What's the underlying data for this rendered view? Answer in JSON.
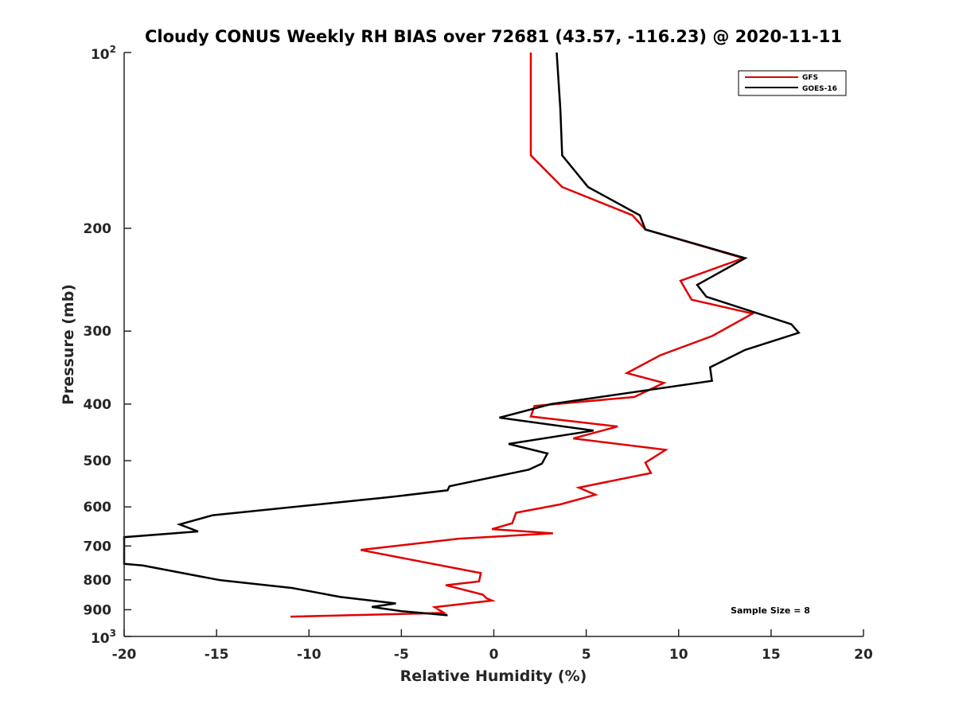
{
  "chart_data": {
    "type": "line",
    "title": "Cloudy CONUS Weekly RH BIAS over 72681 (43.57, -116.23) @ 2020-11-11",
    "xlabel": "Relative Humidity (%)",
    "ylabel": "Pressure (mb)",
    "xlim": [
      -20,
      20
    ],
    "ylim": [
      100,
      1000
    ],
    "y_scale": "log",
    "y_reversed": true,
    "x_ticks": [
      "-20",
      "-15",
      "-10",
      "-5",
      "0",
      "5",
      "10",
      "15",
      "20"
    ],
    "y_ticks": [
      {
        "value": 200,
        "label": "200"
      },
      {
        "value": 300,
        "label": "300"
      },
      {
        "value": 400,
        "label": "400"
      },
      {
        "value": 500,
        "label": "500"
      },
      {
        "value": 600,
        "label": "600"
      },
      {
        "value": 700,
        "label": "700"
      },
      {
        "value": 800,
        "label": "800"
      },
      {
        "value": 900,
        "label": "900"
      }
    ],
    "y_end_ticks": [
      {
        "value": 100,
        "base": "10",
        "exp": "2"
      },
      {
        "value": 1000,
        "base": "10",
        "exp": "3"
      }
    ],
    "grid": false,
    "legend_position": "top-right",
    "annotation": "Sample Size = 8",
    "series": [
      {
        "name": "GFS",
        "color": "#e00000",
        "points": [
          [
            2.0,
            100
          ],
          [
            2.0,
            150
          ],
          [
            3.7,
            170
          ],
          [
            7.5,
            190
          ],
          [
            8.2,
            201
          ],
          [
            13.5,
            225
          ],
          [
            10.1,
            246
          ],
          [
            10.7,
            265
          ],
          [
            14.0,
            280
          ],
          [
            11.8,
            306
          ],
          [
            9.0,
            330
          ],
          [
            7.2,
            354
          ],
          [
            9.2,
            368
          ],
          [
            7.6,
            389
          ],
          [
            2.2,
            403
          ],
          [
            2.0,
            420
          ],
          [
            6.7,
            437
          ],
          [
            4.3,
            458
          ],
          [
            9.3,
            479
          ],
          [
            8.2,
            504
          ],
          [
            8.5,
            525
          ],
          [
            4.6,
            556
          ],
          [
            5.5,
            572
          ],
          [
            3.6,
            594
          ],
          [
            1.2,
            614
          ],
          [
            1.0,
            640
          ],
          [
            -0.1,
            655
          ],
          [
            3.2,
            666
          ],
          [
            -1.9,
            680
          ],
          [
            -7.2,
            711
          ],
          [
            -0.7,
            779
          ],
          [
            -0.8,
            805
          ],
          [
            -2.6,
            817
          ],
          [
            -0.6,
            848
          ],
          [
            -0.4,
            860
          ],
          [
            -0.1,
            868
          ],
          [
            -3.2,
            891
          ],
          [
            -2.7,
            911
          ],
          [
            -3.7,
            913
          ],
          [
            -11.0,
            925
          ]
        ]
      },
      {
        "name": "GOES-16",
        "color": "#000000",
        "points": [
          [
            3.4,
            100
          ],
          [
            3.6,
            125
          ],
          [
            3.7,
            150
          ],
          [
            5.1,
            170
          ],
          [
            7.9,
            190
          ],
          [
            8.2,
            201
          ],
          [
            13.6,
            225
          ],
          [
            11.0,
            250
          ],
          [
            11.5,
            262
          ],
          [
            16.1,
            292
          ],
          [
            16.5,
            302
          ],
          [
            13.6,
            323
          ],
          [
            11.7,
            346
          ],
          [
            11.8,
            365
          ],
          [
            3.1,
            400
          ],
          [
            0.3,
            422
          ],
          [
            5.4,
            444
          ],
          [
            0.8,
            468
          ],
          [
            2.9,
            486
          ],
          [
            2.6,
            506
          ],
          [
            1.9,
            518
          ],
          [
            -2.4,
            553
          ],
          [
            -2.5,
            562
          ],
          [
            -5.8,
            578
          ],
          [
            -15.2,
            620
          ],
          [
            -17.0,
            643
          ],
          [
            -16.0,
            661
          ],
          [
            -20.0,
            676
          ],
          [
            -20.0,
            751
          ],
          [
            -19.0,
            756
          ],
          [
            -14.8,
            801
          ],
          [
            -10.9,
            826
          ],
          [
            -8.3,
            856
          ],
          [
            -5.3,
            878
          ],
          [
            -6.6,
            890
          ],
          [
            -5.0,
            905
          ],
          [
            -2.5,
            920
          ]
        ]
      }
    ]
  }
}
